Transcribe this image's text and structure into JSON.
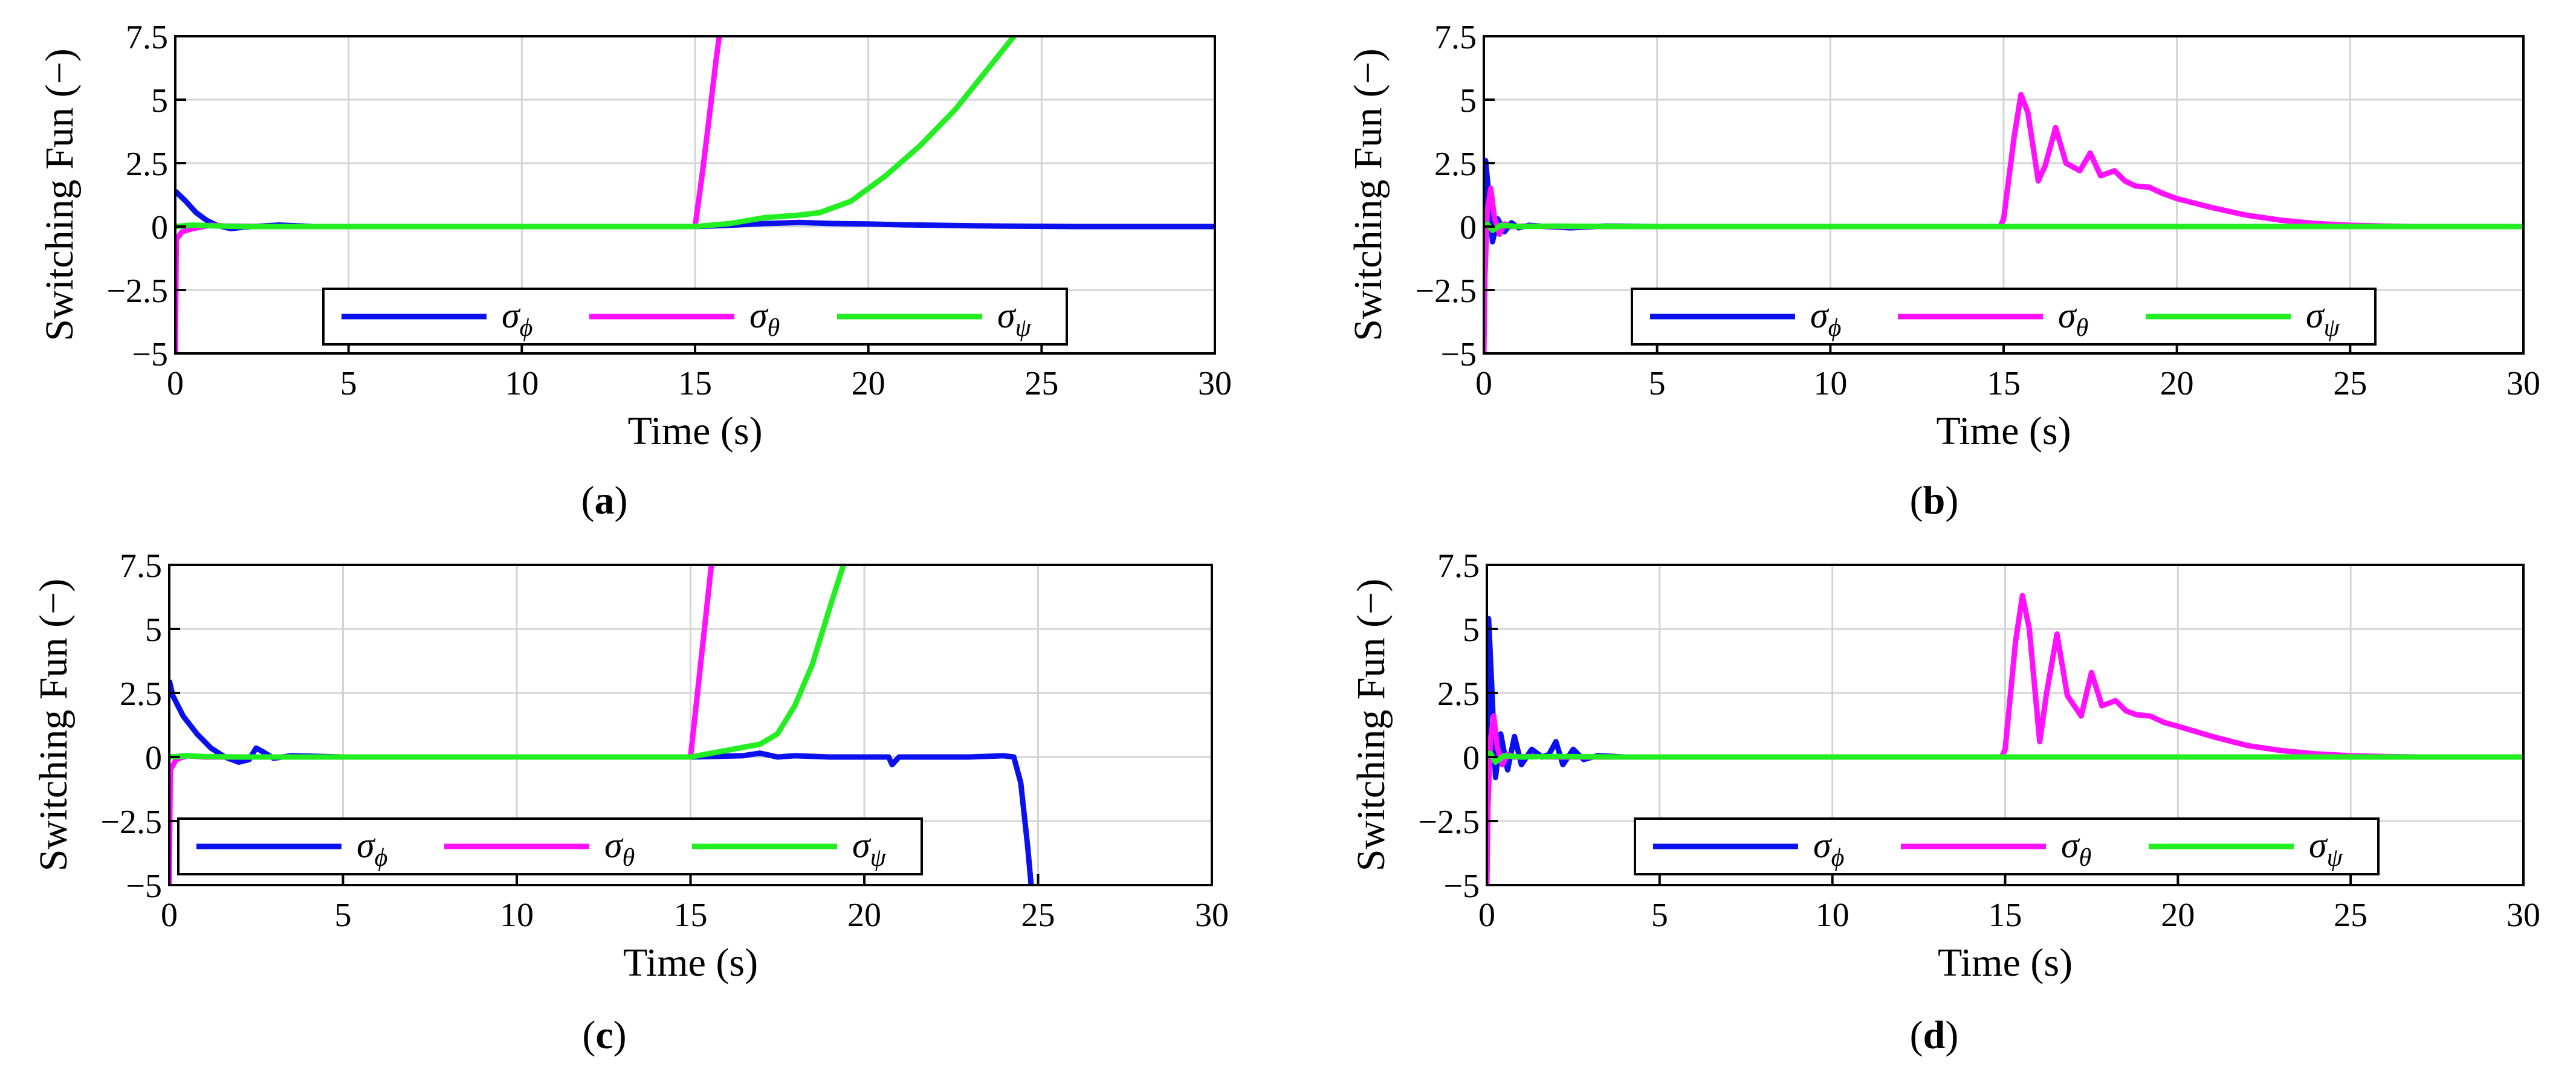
{
  "figure": {
    "panels": [
      "a",
      "b",
      "c",
      "d"
    ]
  },
  "legend_entries": [
    {
      "label": "σ",
      "sub": "ϕ",
      "color": "#0a10ee"
    },
    {
      "label": "σ",
      "sub": "θ",
      "color": "#ff10ff"
    },
    {
      "label": "σ",
      "sub": "ψ",
      "color": "#22ee22"
    }
  ],
  "chart_data": [
    {
      "panel": "a",
      "type": "line",
      "xlabel": "Time (s)",
      "ylabel": "Switching Fun (−)",
      "xlim": [
        0,
        30
      ],
      "ylim": [
        -5,
        7.5
      ],
      "xticks": [
        "0",
        "5",
        "10",
        "15",
        "20",
        "25",
        "30"
      ],
      "yticks": [
        "−5",
        "−2.5",
        "0",
        "2.5",
        "5",
        "7.5"
      ],
      "grid": true,
      "legend_placement": "bottom-center",
      "series": [
        {
          "name": "σϕ",
          "color": "#0a10ee",
          "x": [
            0,
            0.3,
            0.6,
            0.9,
            1.2,
            1.6,
            2.0,
            3.0,
            4.0,
            8,
            12,
            15,
            16,
            17,
            18,
            19,
            20,
            21,
            22,
            23,
            24,
            25,
            26,
            28,
            30
          ],
          "y": [
            1.4,
            1.0,
            0.55,
            0.25,
            0.05,
            -0.08,
            -0.02,
            0.06,
            0.0,
            0.0,
            0.0,
            0.0,
            0.05,
            0.12,
            0.16,
            0.12,
            0.1,
            0.07,
            0.05,
            0.03,
            0.02,
            0.01,
            0.0,
            0.0,
            0.0
          ]
        },
        {
          "name": "σθ",
          "color": "#ff10ff",
          "x": [
            0,
            0.03,
            0.2,
            0.5,
            1.0,
            1.5,
            3,
            8,
            12,
            14.5,
            15,
            15.2,
            15.4,
            15.6,
            15.7
          ],
          "y": [
            -5,
            -0.5,
            -0.2,
            -0.08,
            0.05,
            0.02,
            0.0,
            0.0,
            0.0,
            0.0,
            0.0,
            2.0,
            4.2,
            6.5,
            7.5
          ]
        },
        {
          "name": "σψ",
          "color": "#22ee22",
          "x": [
            0,
            0.5,
            1,
            2,
            5,
            10,
            15,
            16,
            17,
            18,
            18.6,
            19.5,
            20.5,
            21.5,
            22.5,
            23.5,
            24.2
          ],
          "y": [
            0.0,
            0.06,
            0.03,
            0.0,
            0.0,
            0.0,
            0.0,
            0.12,
            0.35,
            0.45,
            0.55,
            1.0,
            2.0,
            3.2,
            4.6,
            6.3,
            7.5
          ]
        }
      ]
    },
    {
      "panel": "b",
      "type": "line",
      "xlabel": "Time (s)",
      "ylabel": "Switching Fun (−)",
      "xlim": [
        0,
        30
      ],
      "ylim": [
        -5,
        7.5
      ],
      "xticks": [
        "0",
        "5",
        "10",
        "15",
        "20",
        "25",
        "30"
      ],
      "yticks": [
        "−5",
        "−2.5",
        "0",
        "2.5",
        "5",
        "7.5"
      ],
      "grid": true,
      "legend_placement": "bottom-center",
      "series": [
        {
          "name": "σϕ",
          "color": "#0a10ee",
          "x": [
            0,
            0.05,
            0.15,
            0.25,
            0.4,
            0.6,
            0.8,
            1.0,
            1.3,
            1.8,
            2.5,
            3.5,
            5,
            10,
            15,
            20,
            25,
            30
          ],
          "y": [
            0.0,
            2.6,
            1.2,
            -0.6,
            0.3,
            -0.2,
            0.15,
            -0.05,
            0.05,
            0.0,
            -0.05,
            0.02,
            0.0,
            0.0,
            0.0,
            0.0,
            0.0,
            0.0
          ]
        },
        {
          "name": "σθ",
          "color": "#ff10ff",
          "x": [
            0,
            0.03,
            0.1,
            0.2,
            0.3,
            0.45,
            0.6,
            0.8,
            1.2,
            2,
            5,
            10,
            14.9,
            15,
            15.3,
            15.5,
            15.7,
            16.0,
            16.2,
            16.5,
            16.8,
            17.2,
            17.5,
            17.8,
            18.2,
            18.5,
            18.8,
            19.2,
            19.6,
            20,
            21,
            22,
            23,
            24,
            25,
            26,
            27,
            30
          ],
          "y": [
            -5,
            -2,
            0.6,
            1.5,
            0.4,
            -0.3,
            0.1,
            0.0,
            0.02,
            0.0,
            0.0,
            0.0,
            0.0,
            0.3,
            3.5,
            5.2,
            4.5,
            1.8,
            2.4,
            3.9,
            2.5,
            2.2,
            2.9,
            2.0,
            2.2,
            1.8,
            1.6,
            1.55,
            1.3,
            1.1,
            0.75,
            0.45,
            0.25,
            0.12,
            0.05,
            0.02,
            0.0,
            0.0
          ]
        },
        {
          "name": "σψ",
          "color": "#22ee22",
          "x": [
            0,
            0.1,
            0.25,
            0.5,
            1,
            2,
            4,
            10,
            15,
            20,
            25,
            30
          ],
          "y": [
            0.0,
            0.1,
            -0.15,
            0.05,
            0.0,
            0.02,
            0.0,
            0.0,
            0.0,
            0.0,
            0.0,
            0.0
          ]
        }
      ]
    },
    {
      "panel": "c",
      "type": "line",
      "xlabel": "Time (s)",
      "ylabel": "Switching Fun (−)",
      "xlim": [
        0,
        30
      ],
      "ylim": [
        -5,
        7.5
      ],
      "xticks": [
        "0",
        "5",
        "10",
        "15",
        "20",
        "25",
        "30"
      ],
      "yticks": [
        "−5",
        "−2.5",
        "0",
        "2.5",
        "5",
        "7.5"
      ],
      "grid": true,
      "legend_placement": "bottom-left",
      "series": [
        {
          "name": "σϕ",
          "color": "#0a10ee",
          "x": [
            0,
            0.1,
            0.4,
            0.8,
            1.2,
            1.6,
            2.0,
            2.3,
            2.5,
            2.7,
            3.0,
            3.5,
            5,
            10,
            15,
            16.5,
            17,
            17.5,
            18,
            19,
            20,
            20.7,
            20.8,
            21,
            22,
            23,
            24,
            24.3,
            24.5,
            24.7,
            24.8
          ],
          "y": [
            3.0,
            2.4,
            1.6,
            0.9,
            0.35,
            0.0,
            -0.2,
            -0.1,
            0.35,
            0.2,
            -0.05,
            0.05,
            0.0,
            0.0,
            0.0,
            0.05,
            0.15,
            0.0,
            0.05,
            0.0,
            0.0,
            0.0,
            -0.3,
            0.0,
            0.0,
            0.0,
            0.05,
            0.0,
            -1.0,
            -3.5,
            -5
          ]
        },
        {
          "name": "σθ",
          "color": "#ff10ff",
          "x": [
            0,
            0.03,
            0.2,
            0.5,
            1.0,
            2,
            5,
            10,
            14.5,
            15,
            15.2,
            15.4,
            15.6
          ],
          "y": [
            -5,
            -0.5,
            -0.1,
            0.05,
            0.0,
            0.0,
            0.0,
            0.0,
            0.0,
            0.0,
            2.5,
            5.0,
            7.5
          ]
        },
        {
          "name": "σψ",
          "color": "#22ee22",
          "x": [
            0,
            0.5,
            1,
            2,
            5,
            10,
            15,
            16,
            17,
            17.5,
            18,
            18.5,
            19,
            19.4
          ],
          "y": [
            0.0,
            0.05,
            0.02,
            0.0,
            0.0,
            0.0,
            0.0,
            0.25,
            0.5,
            0.9,
            2.0,
            3.6,
            5.8,
            7.5
          ]
        }
      ]
    },
    {
      "panel": "d",
      "type": "line",
      "xlabel": "Time (s)",
      "ylabel": "Switching Fun (−)",
      "xlim": [
        0,
        30
      ],
      "ylim": [
        -5,
        7.5
      ],
      "xticks": [
        "0",
        "5",
        "10",
        "15",
        "20",
        "25",
        "30"
      ],
      "yticks": [
        "−5",
        "−2.5",
        "0",
        "2.5",
        "5",
        "7.5"
      ],
      "grid": true,
      "legend_placement": "bottom-center",
      "series": [
        {
          "name": "σϕ",
          "color": "#0a10ee",
          "x": [
            0,
            0.05,
            0.15,
            0.25,
            0.4,
            0.6,
            0.8,
            1.0,
            1.3,
            1.6,
            1.8,
            2.0,
            2.2,
            2.5,
            2.8,
            3.2,
            4,
            5,
            10,
            15,
            20,
            25,
            30
          ],
          "y": [
            0.0,
            5.4,
            2.5,
            -0.8,
            0.9,
            -0.5,
            0.8,
            -0.3,
            0.3,
            0.0,
            0.1,
            0.6,
            -0.3,
            0.3,
            -0.1,
            0.05,
            0.0,
            0.0,
            0.0,
            0.0,
            0.0,
            0.0,
            0.0
          ]
        },
        {
          "name": "σθ",
          "color": "#ff10ff",
          "x": [
            0,
            0.03,
            0.1,
            0.2,
            0.3,
            0.45,
            0.6,
            0.8,
            1.2,
            2,
            5,
            10,
            14.9,
            15,
            15.3,
            15.5,
            15.7,
            16.0,
            16.2,
            16.5,
            16.8,
            17.2,
            17.5,
            17.8,
            18.2,
            18.5,
            18.8,
            19.2,
            19.6,
            20,
            21,
            22,
            23,
            24,
            25,
            26,
            27,
            30
          ],
          "y": [
            -5,
            -2,
            0.6,
            1.6,
            0.4,
            -0.3,
            0.1,
            0.0,
            0.02,
            0.0,
            0.0,
            0.0,
            0.0,
            0.3,
            4.5,
            6.3,
            5.0,
            0.6,
            2.5,
            4.8,
            2.4,
            1.6,
            3.3,
            2.0,
            2.2,
            1.8,
            1.65,
            1.6,
            1.35,
            1.2,
            0.8,
            0.45,
            0.25,
            0.12,
            0.05,
            0.02,
            0.0,
            0.0
          ]
        },
        {
          "name": "σψ",
          "color": "#22ee22",
          "x": [
            0,
            0.1,
            0.25,
            0.5,
            1,
            2,
            4,
            10,
            15,
            20,
            25,
            30
          ],
          "y": [
            0.0,
            0.15,
            -0.2,
            0.05,
            0.0,
            0.02,
            0.0,
            0.0,
            0.0,
            0.0,
            0.0,
            0.0
          ]
        }
      ]
    }
  ]
}
